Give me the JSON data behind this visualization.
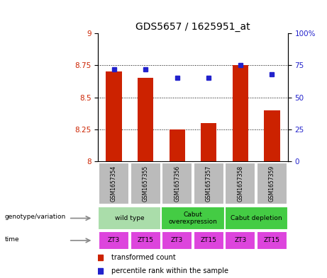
{
  "title": "GDS5657 / 1625951_at",
  "samples": [
    "GSM1657354",
    "GSM1657355",
    "GSM1657356",
    "GSM1657357",
    "GSM1657358",
    "GSM1657359"
  ],
  "transformed_count": [
    8.7,
    8.65,
    8.25,
    8.3,
    8.75,
    8.4
  ],
  "percentile_rank": [
    72,
    72,
    65,
    65,
    75,
    68
  ],
  "ylim_left": [
    8.0,
    9.0
  ],
  "ylim_right": [
    0,
    100
  ],
  "yticks_left": [
    8.0,
    8.25,
    8.5,
    8.75,
    9.0
  ],
  "yticks_right": [
    0,
    25,
    50,
    75,
    100
  ],
  "ytick_labels_left": [
    "8",
    "8.25",
    "8.5",
    "8.75",
    "9"
  ],
  "ytick_labels_right": [
    "0",
    "25",
    "50",
    "75",
    "100%"
  ],
  "bar_color": "#cc2200",
  "dot_color": "#2222cc",
  "bar_width": 0.5,
  "grid_color": "black",
  "bg_color": "#ffffff",
  "genotype_groups": [
    {
      "label": "wild type",
      "start": 0,
      "end": 2,
      "color": "#aaddaa"
    },
    {
      "label": "Cabut\noverexpression",
      "start": 2,
      "end": 4,
      "color": "#44cc44"
    },
    {
      "label": "Cabut depletion",
      "start": 4,
      "end": 6,
      "color": "#44cc44"
    }
  ],
  "time_labels": [
    "ZT3",
    "ZT15",
    "ZT3",
    "ZT15",
    "ZT3",
    "ZT15"
  ],
  "time_color": "#dd44dd",
  "gsm_box_color": "#bbbbbb",
  "legend_red_label": "transformed count",
  "legend_blue_label": "percentile rank within the sample",
  "left_ylabel_color": "#cc2200",
  "right_ylabel_color": "#2222cc",
  "title_fontsize": 10,
  "tick_fontsize": 7.5,
  "label_fontsize": 7,
  "dot_size": 5
}
